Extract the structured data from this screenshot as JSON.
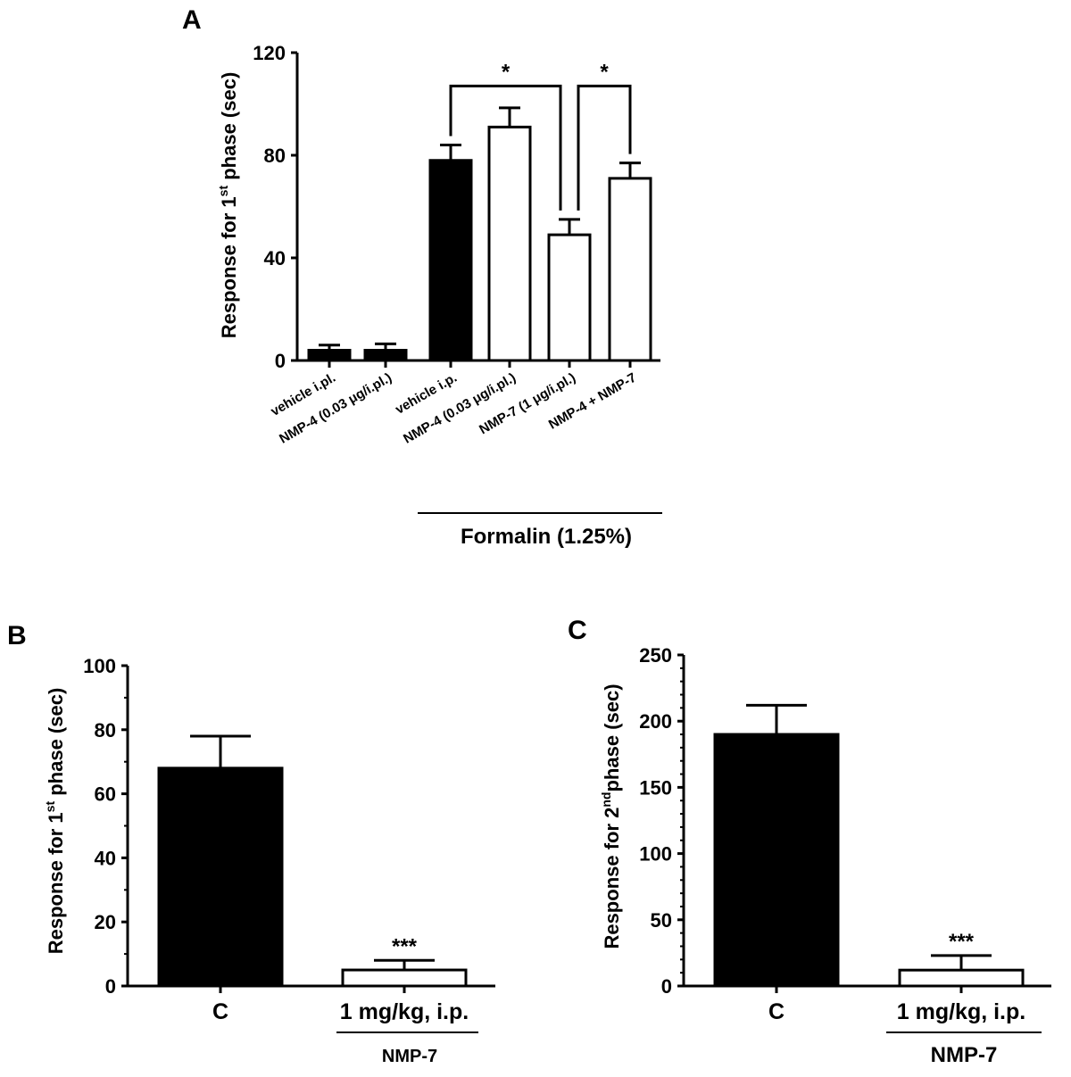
{
  "chart_data": [
    {
      "panel": "A",
      "type": "bar",
      "ylabel": "Response for 1st phase (sec)",
      "ylabel_main": "Response for 1",
      "ylabel_sup": "st",
      "ylabel_tail": " phase (sec)",
      "ylim": [
        0,
        120
      ],
      "yticks": [
        0,
        40,
        80,
        120
      ],
      "categories": [
        "vehicle i.pl.",
        "NMP-4 (0.03 μg/i.pl.)",
        "vehicle i.p.",
        "NMP-4 (0.03 μg/i.pl.)",
        "NMP-7 (1 μg/i.pl.)",
        "NMP-4 + NMP-7"
      ],
      "values": [
        4,
        4,
        78,
        91,
        49,
        71
      ],
      "errors": [
        2,
        2.5,
        6,
        7.5,
        6,
        6
      ],
      "fills": [
        "#000000",
        "#000000",
        "#000000",
        "#ffffff",
        "#ffffff",
        "#ffffff"
      ],
      "group_label": "Formalin (1.25%)",
      "group_span": [
        2,
        5
      ],
      "significance": [
        {
          "from": 2,
          "to": 4,
          "label": "*",
          "y": 107
        },
        {
          "from": 4,
          "to": 5,
          "label": "*",
          "y": 107
        }
      ]
    },
    {
      "panel": "B",
      "type": "bar",
      "ylabel": "Response for 1st phase (sec)",
      "ylabel_main": "Response for 1",
      "ylabel_sup": "st",
      "ylabel_tail": " phase (sec)",
      "ylim": [
        0,
        100
      ],
      "yticks": [
        0,
        20,
        40,
        60,
        80,
        100
      ],
      "categories": [
        "C",
        "1 mg/kg, i.p."
      ],
      "values": [
        68,
        5
      ],
      "errors": [
        10,
        3
      ],
      "fills": [
        "#000000",
        "#ffffff"
      ],
      "annotations": [
        "",
        "***"
      ],
      "group_label": "NMP-7"
    },
    {
      "panel": "C",
      "type": "bar",
      "ylabel": "Response for 2nd phase (sec)",
      "ylabel_main": "Response for 2",
      "ylabel_sup": "nd",
      "ylabel_tail": "phase (sec)",
      "ylim": [
        0,
        250
      ],
      "yticks": [
        0,
        50,
        100,
        150,
        200,
        250
      ],
      "categories": [
        "C",
        "1 mg/kg, i.p."
      ],
      "values": [
        190,
        12
      ],
      "errors": [
        22,
        11
      ],
      "fills": [
        "#000000",
        "#ffffff"
      ],
      "annotations": [
        "",
        "***"
      ],
      "group_label": "NMP-7"
    }
  ]
}
